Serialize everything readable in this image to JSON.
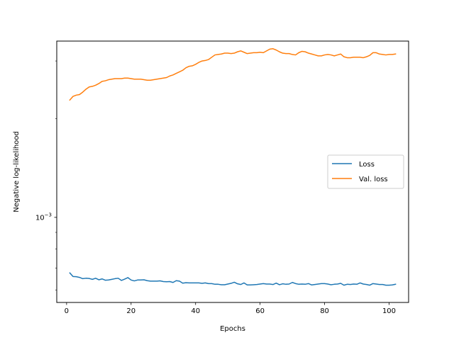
{
  "chart_data": {
    "type": "line",
    "xlabel": "Epochs",
    "ylabel": "Negative log-likelihood",
    "xlim": [
      -3.05,
      106.05
    ],
    "ylim": [
      0.00055,
      0.00345
    ],
    "yscale": "log",
    "xticks": [
      0,
      20,
      40,
      60,
      80,
      100
    ],
    "yticks": [
      {
        "value": 0.001,
        "base": "10",
        "exp": "−3"
      }
    ],
    "grid": false,
    "legend_position": "center-right",
    "series": [
      {
        "name": "Loss",
        "color": "#1f77b4",
        "x": [
          1,
          2,
          3,
          4,
          5,
          6,
          7,
          8,
          9,
          10,
          11,
          12,
          13,
          14,
          15,
          16,
          17,
          18,
          19,
          20,
          21,
          22,
          23,
          24,
          25,
          26,
          27,
          28,
          29,
          30,
          31,
          32,
          33,
          34,
          35,
          36,
          37,
          38,
          39,
          40,
          41,
          42,
          43,
          44,
          45,
          46,
          47,
          48,
          49,
          50,
          51,
          52,
          53,
          54,
          55,
          56,
          57,
          58,
          59,
          60,
          61,
          62,
          63,
          64,
          65,
          66,
          67,
          68,
          69,
          70,
          71,
          72,
          73,
          74,
          75,
          76,
          77,
          78,
          79,
          80,
          81,
          82,
          83,
          84,
          85,
          86,
          87,
          88,
          89,
          90,
          91,
          92,
          93,
          94,
          95,
          96,
          97,
          98,
          99,
          100,
          101,
          102
        ],
        "y": [
          0.000677,
          0.00066,
          0.000659,
          0.000656,
          0.00065,
          0.000652,
          0.000651,
          0.000647,
          0.000652,
          0.000645,
          0.000649,
          0.000643,
          0.000644,
          0.000647,
          0.00065,
          0.000652,
          0.000642,
          0.000648,
          0.000655,
          0.000644,
          0.00064,
          0.000644,
          0.000644,
          0.000645,
          0.000641,
          0.000639,
          0.000639,
          0.000639,
          0.00064,
          0.000637,
          0.000636,
          0.000637,
          0.000633,
          0.000641,
          0.000639,
          0.00063,
          0.000632,
          0.000631,
          0.000631,
          0.000631,
          0.000631,
          0.000629,
          0.000631,
          0.000628,
          0.000628,
          0.000625,
          0.000625,
          0.000623,
          0.000623,
          0.000626,
          0.000629,
          0.000634,
          0.000627,
          0.000624,
          0.000631,
          0.000622,
          0.000622,
          0.000623,
          0.000624,
          0.000626,
          0.000628,
          0.000626,
          0.000626,
          0.000624,
          0.00063,
          0.000623,
          0.000627,
          0.000625,
          0.000626,
          0.000633,
          0.000628,
          0.000625,
          0.000626,
          0.000625,
          0.000628,
          0.000622,
          0.000624,
          0.000626,
          0.000628,
          0.000628,
          0.000626,
          0.000623,
          0.000625,
          0.000626,
          0.000629,
          0.000621,
          0.000625,
          0.000624,
          0.000626,
          0.000625,
          0.000631,
          0.000626,
          0.000624,
          0.000621,
          0.000628,
          0.000626,
          0.000624,
          0.000624,
          0.000621,
          0.000621,
          0.000622,
          0.000625
        ]
      },
      {
        "name": "Val. loss",
        "color": "#ff7f0e",
        "x": [
          1,
          2,
          3,
          4,
          5,
          6,
          7,
          8,
          9,
          10,
          11,
          12,
          13,
          14,
          15,
          16,
          17,
          18,
          19,
          20,
          21,
          22,
          23,
          24,
          25,
          26,
          27,
          28,
          29,
          30,
          31,
          32,
          33,
          34,
          35,
          36,
          37,
          38,
          39,
          40,
          41,
          42,
          43,
          44,
          45,
          46,
          47,
          48,
          49,
          50,
          51,
          52,
          53,
          54,
          55,
          56,
          57,
          58,
          59,
          60,
          61,
          62,
          63,
          64,
          65,
          66,
          67,
          68,
          69,
          70,
          71,
          72,
          73,
          74,
          75,
          76,
          77,
          78,
          79,
          80,
          81,
          82,
          83,
          84,
          85,
          86,
          87,
          88,
          89,
          90,
          91,
          92,
          93,
          94,
          95,
          96,
          97,
          98,
          99,
          100,
          101,
          102
        ],
        "y": [
          0.00228,
          0.00234,
          0.00236,
          0.00237,
          0.00241,
          0.00246,
          0.0025,
          0.00251,
          0.00253,
          0.00256,
          0.0026,
          0.00261,
          0.00263,
          0.00264,
          0.00265,
          0.00265,
          0.00265,
          0.00266,
          0.00266,
          0.00265,
          0.00264,
          0.00264,
          0.00264,
          0.00263,
          0.00262,
          0.00262,
          0.00263,
          0.00264,
          0.00265,
          0.00266,
          0.00267,
          0.0027,
          0.00272,
          0.00275,
          0.00278,
          0.00281,
          0.00286,
          0.00289,
          0.0029,
          0.00293,
          0.00297,
          0.003,
          0.00301,
          0.00303,
          0.00308,
          0.00313,
          0.00314,
          0.00315,
          0.00317,
          0.00317,
          0.00316,
          0.00317,
          0.0032,
          0.00322,
          0.00319,
          0.00316,
          0.00317,
          0.00318,
          0.00318,
          0.00319,
          0.00318,
          0.00322,
          0.00326,
          0.00327,
          0.00324,
          0.0032,
          0.00317,
          0.00316,
          0.00316,
          0.00314,
          0.00313,
          0.00318,
          0.00321,
          0.0032,
          0.00317,
          0.00315,
          0.00313,
          0.00311,
          0.00311,
          0.00313,
          0.00314,
          0.00313,
          0.00311,
          0.00313,
          0.00315,
          0.00309,
          0.00307,
          0.00307,
          0.00308,
          0.00308,
          0.00308,
          0.00307,
          0.00309,
          0.00312,
          0.00318,
          0.00318,
          0.00315,
          0.00314,
          0.00313,
          0.00314,
          0.00314,
          0.00315
        ]
      }
    ]
  }
}
